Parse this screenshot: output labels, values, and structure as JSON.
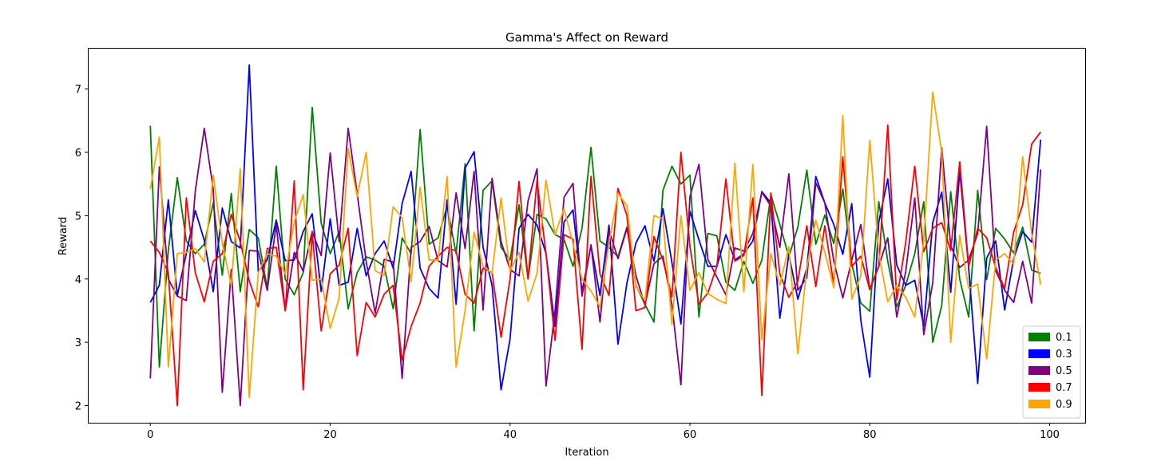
{
  "chart_data": {
    "type": "line",
    "title": "Gamma's Affect on Reward",
    "xlabel": "Iteration",
    "ylabel": "Reward",
    "xlim": [
      -6.95,
      103.95
    ],
    "ylim": [
      1.73,
      7.65
    ],
    "xticks": [
      0,
      20,
      40,
      60,
      80,
      100
    ],
    "yticks": [
      2,
      3,
      4,
      5,
      6,
      7
    ],
    "grid": false,
    "legend_position": "lower-right",
    "x": [
      0,
      1,
      2,
      3,
      4,
      5,
      6,
      7,
      8,
      9,
      10,
      11,
      12,
      13,
      14,
      15,
      16,
      17,
      18,
      19,
      20,
      21,
      22,
      23,
      24,
      25,
      26,
      27,
      28,
      29,
      30,
      31,
      32,
      33,
      34,
      35,
      36,
      37,
      38,
      39,
      40,
      41,
      42,
      43,
      44,
      45,
      46,
      47,
      48,
      49,
      50,
      51,
      52,
      53,
      54,
      55,
      56,
      57,
      58,
      59,
      60,
      61,
      62,
      63,
      64,
      65,
      66,
      67,
      68,
      69,
      70,
      71,
      72,
      73,
      74,
      75,
      76,
      77,
      78,
      79,
      80,
      81,
      82,
      83,
      84,
      85,
      86,
      87,
      88,
      89,
      90,
      91,
      92,
      93,
      94,
      95,
      96,
      97,
      98,
      99
    ],
    "series": [
      {
        "name": "0.1",
        "color": "#008000",
        "values": [
          6.42,
          2.61,
          4.45,
          5.6,
          4.6,
          4.4,
          4.55,
          5.2,
          4.06,
          5.35,
          3.8,
          4.78,
          4.65,
          3.85,
          5.78,
          4.0,
          3.75,
          4.1,
          6.71,
          4.88,
          4.4,
          4.75,
          3.53,
          4.1,
          4.35,
          4.3,
          4.2,
          3.53,
          4.65,
          4.4,
          6.36,
          4.55,
          4.65,
          5.15,
          4.4,
          5.82,
          3.18,
          5.4,
          5.55,
          4.5,
          4.3,
          5.17,
          4.0,
          5.02,
          4.95,
          4.7,
          4.63,
          4.2,
          4.8,
          6.08,
          4.6,
          4.5,
          4.35,
          4.82,
          3.9,
          3.6,
          3.32,
          5.4,
          5.78,
          5.5,
          5.64,
          3.4,
          4.72,
          4.68,
          3.95,
          3.82,
          4.28,
          3.93,
          4.3,
          5.33,
          4.86,
          4.35,
          4.82,
          5.72,
          4.55,
          5.01,
          4.56,
          5.42,
          4.24,
          3.62,
          3.49,
          5.22,
          4.28,
          3.56,
          3.9,
          4.4,
          5.22,
          3.0,
          3.58,
          5.38,
          4.0,
          3.4,
          5.4,
          3.99,
          4.8,
          4.63,
          4.41,
          4.82,
          4.14,
          4.09
        ]
      },
      {
        "name": "0.3",
        "color": "#0000ff",
        "values": [
          3.63,
          3.9,
          5.25,
          3.74,
          4.4,
          5.08,
          4.61,
          3.8,
          5.12,
          4.59,
          4.49,
          7.38,
          4.12,
          4.3,
          4.93,
          4.29,
          4.3,
          4.75,
          5.03,
          3.8,
          4.95,
          3.9,
          3.95,
          4.8,
          4.05,
          4.4,
          4.6,
          4.17,
          5.19,
          5.7,
          4.17,
          3.85,
          3.7,
          5.25,
          3.6,
          5.75,
          6.01,
          4.5,
          3.9,
          2.25,
          3.05,
          4.8,
          5.02,
          4.85,
          4.4,
          3.25,
          4.9,
          5.09,
          3.8,
          4.53,
          3.74,
          4.85,
          2.97,
          3.94,
          4.57,
          4.84,
          4.28,
          5.11,
          4.26,
          3.29,
          5.07,
          4.62,
          4.2,
          4.2,
          4.7,
          4.3,
          4.4,
          4.6,
          5.38,
          5.2,
          3.38,
          4.39,
          3.68,
          4.17,
          5.62,
          5.2,
          4.86,
          4.39,
          5.19,
          3.35,
          2.45,
          4.9,
          5.58,
          4.22,
          3.9,
          3.98,
          3.25,
          4.89,
          5.37,
          3.79,
          5.71,
          4.17,
          2.35,
          4.33,
          4.6,
          3.51,
          4.32,
          4.75,
          4.58,
          6.2
        ]
      },
      {
        "name": "0.5",
        "color": "#800080",
        "values": [
          2.43,
          5.77,
          4.0,
          3.73,
          3.66,
          5.39,
          6.38,
          5.41,
          2.21,
          4.15,
          2.0,
          4.45,
          4.44,
          3.82,
          4.86,
          3.5,
          4.42,
          4.12,
          4.75,
          4.37,
          5.99,
          4.59,
          6.38,
          5.35,
          4.28,
          3.46,
          4.31,
          4.27,
          2.43,
          4.5,
          4.59,
          4.83,
          4.29,
          4.19,
          5.36,
          4.48,
          5.7,
          3.51,
          5.59,
          4.59,
          4.15,
          4.05,
          5.23,
          5.74,
          2.31,
          3.49,
          5.29,
          5.51,
          3.73,
          4.54,
          3.32,
          4.77,
          4.32,
          4.8,
          4.05,
          3.59,
          4.24,
          4.36,
          3.59,
          2.33,
          5.3,
          5.81,
          4.31,
          4.03,
          3.75,
          4.49,
          4.44,
          4.72,
          5.37,
          5.15,
          4.5,
          5.66,
          3.82,
          4.02,
          5.52,
          5.2,
          4.28,
          3.7,
          4.3,
          4.86,
          3.84,
          4.2,
          4.65,
          3.4,
          4.12,
          5.28,
          3.12,
          3.94,
          6.07,
          4.53,
          4.18,
          4.3,
          4.72,
          6.41,
          4.13,
          3.82,
          3.63,
          4.28,
          3.62,
          5.73
        ]
      },
      {
        "name": "0.7",
        "color": "#ff0000",
        "values": [
          4.6,
          4.42,
          4.1,
          2.0,
          5.28,
          4.1,
          3.64,
          4.28,
          4.4,
          5.02,
          4.59,
          3.97,
          3.56,
          4.48,
          4.5,
          3.5,
          5.55,
          2.25,
          4.73,
          3.18,
          4.08,
          4.22,
          4.8,
          2.79,
          3.63,
          3.4,
          3.76,
          3.9,
          2.72,
          3.25,
          3.62,
          4.2,
          4.36,
          4.5,
          4.44,
          3.76,
          3.62,
          4.17,
          4.1,
          3.08,
          4.0,
          5.54,
          4.0,
          5.56,
          4.4,
          3.03,
          4.7,
          4.63,
          2.89,
          5.62,
          4.08,
          3.74,
          5.43,
          5.0,
          3.5,
          3.55,
          4.67,
          4.3,
          3.72,
          6.0,
          4.52,
          3.6,
          3.78,
          4.2,
          5.58,
          4.28,
          4.37,
          5.28,
          2.16,
          5.36,
          4.08,
          3.71,
          3.96,
          4.84,
          3.88,
          4.84,
          3.91,
          5.93,
          4.2,
          4.36,
          3.83,
          4.2,
          6.43,
          3.67,
          4.58,
          5.78,
          4.43,
          4.8,
          4.89,
          4.45,
          5.85,
          4.2,
          4.8,
          4.65,
          4.18,
          3.85,
          4.74,
          5.17,
          6.13,
          6.32
        ]
      },
      {
        "name": "0.9",
        "color": "#ffa500",
        "values": [
          5.42,
          6.24,
          2.61,
          4.4,
          4.42,
          4.48,
          4.27,
          5.64,
          4.56,
          3.9,
          5.74,
          2.13,
          4.1,
          4.4,
          4.36,
          4.08,
          4.9,
          5.33,
          3.98,
          4.0,
          3.22,
          3.7,
          6.06,
          5.3,
          6.0,
          4.13,
          4.06,
          5.14,
          4.97,
          3.96,
          5.45,
          4.3,
          4.3,
          5.62,
          2.61,
          3.5,
          4.74,
          4.2,
          4.09,
          5.28,
          4.13,
          4.42,
          3.65,
          4.09,
          5.56,
          4.7,
          5.11,
          4.56,
          4.0,
          3.81,
          3.56,
          4.57,
          5.35,
          5.16,
          3.88,
          3.66,
          5.0,
          4.95,
          3.28,
          5.0,
          3.82,
          4.1,
          3.77,
          3.68,
          3.61,
          5.83,
          3.8,
          5.81,
          3.04,
          4.4,
          3.9,
          4.51,
          2.82,
          4.18,
          4.93,
          4.42,
          3.86,
          6.58,
          3.68,
          4.05,
          6.19,
          4.4,
          3.64,
          3.9,
          3.71,
          3.4,
          4.6,
          6.95,
          6.0,
          3.0,
          4.69,
          3.85,
          3.92,
          2.74,
          4.3,
          4.4,
          4.23,
          5.93,
          4.72,
          3.91
        ]
      }
    ]
  }
}
